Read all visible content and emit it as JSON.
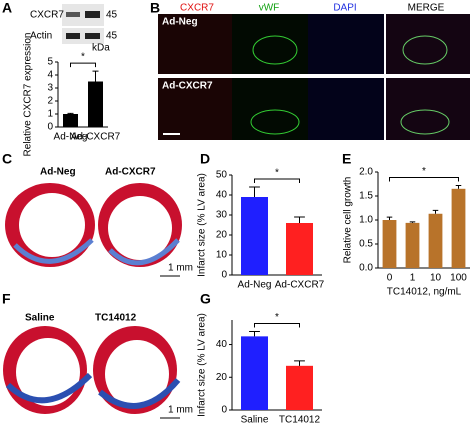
{
  "panel_labels": [
    "A",
    "B",
    "C",
    "D",
    "E",
    "F",
    "G"
  ],
  "blot": {
    "bands": [
      "CXCR7",
      "Actin"
    ],
    "marker": "45",
    "unit": "kDa"
  },
  "micrographs": {
    "channels": [
      "CXCR7",
      "vWF",
      "DAPI",
      "MERGE"
    ],
    "rows": [
      "Ad-Neg",
      "Ad-CXCR7"
    ]
  },
  "sections_c": {
    "labels": [
      "Ad-Neg",
      "Ad-CXCR7"
    ],
    "scale": "1 mm"
  },
  "sections_f": {
    "labels": [
      "Saline",
      "TC14012"
    ],
    "scale": "1 mm"
  },
  "chart_data": [
    {
      "type": "bar",
      "ylabel": "Relative CXCR7 expression",
      "categories": [
        "Ad-Neg",
        "Ad-CXCR7"
      ],
      "values": [
        1.0,
        3.5
      ],
      "errors": [
        0.05,
        0.8
      ],
      "colors": [
        "#000000",
        "#000000"
      ],
      "ylim": [
        0,
        5
      ],
      "yticks": [
        0,
        1,
        2,
        3,
        4,
        5
      ],
      "significance": "*"
    },
    {
      "type": "bar",
      "ylabel": "Infarct size (% LV area)",
      "categories": [
        "Ad-Neg",
        "Ad-CXCR7"
      ],
      "values": [
        39,
        26
      ],
      "errors": [
        5,
        3
      ],
      "colors": [
        "#1f1fff",
        "#ff2020"
      ],
      "ylim": [
        0,
        50
      ],
      "yticks": [
        0,
        10,
        20,
        30,
        40,
        50
      ],
      "significance": "*"
    },
    {
      "type": "bar",
      "ylabel": "Relative cell growth",
      "xlabel": "TC14012, ng/mL",
      "categories": [
        "0",
        "1",
        "10",
        "100"
      ],
      "values": [
        1.0,
        0.94,
        1.13,
        1.65
      ],
      "errors": [
        0.06,
        0.02,
        0.07,
        0.07
      ],
      "colors": [
        "#b8732a",
        "#b8732a",
        "#b8732a",
        "#b8732a"
      ],
      "ylim": [
        0,
        2
      ],
      "yticks": [
        {
          "value": 0,
          "label": "0.0"
        },
        0.5,
        {
          "value": 1,
          "label": "1.0"
        },
        1.5,
        {
          "value": 2,
          "label": "2.0"
        }
      ],
      "significance": "*"
    },
    {
      "type": "bar",
      "ylabel": "Infarct size (% LV area)",
      "categories": [
        "Saline",
        "TC14012"
      ],
      "values": [
        45,
        27
      ],
      "errors": [
        3,
        3
      ],
      "colors": [
        "#1f1fff",
        "#ff2020"
      ],
      "ylim": [
        0,
        55
      ],
      "yticks": [
        0,
        20,
        40
      ],
      "significance": "*"
    }
  ]
}
